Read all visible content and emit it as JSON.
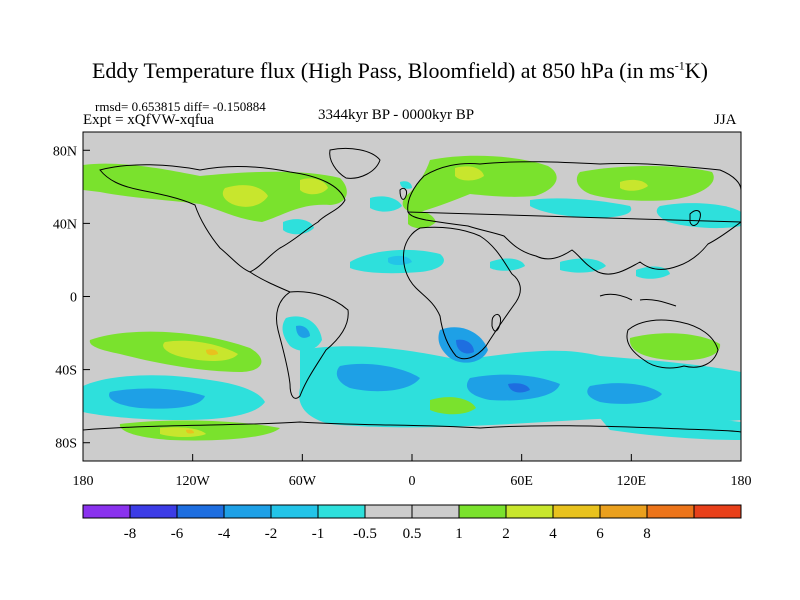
{
  "figure": {
    "title": "Eddy Temperature flux (High Pass, Bloomfield) at 850 hPa (in ms",
    "title_unit_sup": "-1",
    "title_end": "K)",
    "stats_line": "rmsd= 0.653815 diff= -0.150884",
    "experiment_line": "Expt = xQfVW-xqfua",
    "period": "3344kyr BP - 0000kyr BP",
    "season": "JJA"
  },
  "axes": {
    "lat_ticks": [
      {
        "value": 80,
        "label": "80N"
      },
      {
        "value": 40,
        "label": "40N"
      },
      {
        "value": 0,
        "label": "0"
      },
      {
        "value": -40,
        "label": "40S"
      },
      {
        "value": -80,
        "label": "80S"
      }
    ],
    "lon_ticks": [
      {
        "value": -180,
        "label": "180"
      },
      {
        "value": -120,
        "label": "120W"
      },
      {
        "value": -60,
        "label": "60W"
      },
      {
        "value": 0,
        "label": "0"
      },
      {
        "value": 60,
        "label": "60E"
      },
      {
        "value": 120,
        "label": "120E"
      },
      {
        "value": 180,
        "label": "180"
      }
    ],
    "lon_range": [
      -180,
      180
    ],
    "lat_range": [
      -90,
      90
    ]
  },
  "colorbar": {
    "colors": [
      "#8a32ee",
      "#3c3ce6",
      "#1e6ee0",
      "#1ea0e6",
      "#23c4e8",
      "#2ee0dc",
      "#cccccc",
      "#cccccc",
      "#7ae22d",
      "#c8e62d",
      "#e8c21e",
      "#eaa01e",
      "#ec741a",
      "#e8401a"
    ],
    "labels": [
      "-8",
      "-6",
      "-4",
      "-2",
      "-1",
      "-0.5",
      "0.5",
      "1",
      "2",
      "4",
      "6",
      "8"
    ]
  },
  "palette": {
    "neutral": "#cccccc",
    "cyan": "#2ee0dc",
    "cyan_dark": "#23c4e8",
    "blue": "#1ea0e6",
    "green": "#7ae22d",
    "yellow_green": "#c8e62d",
    "orange": "#e8c21e"
  }
}
